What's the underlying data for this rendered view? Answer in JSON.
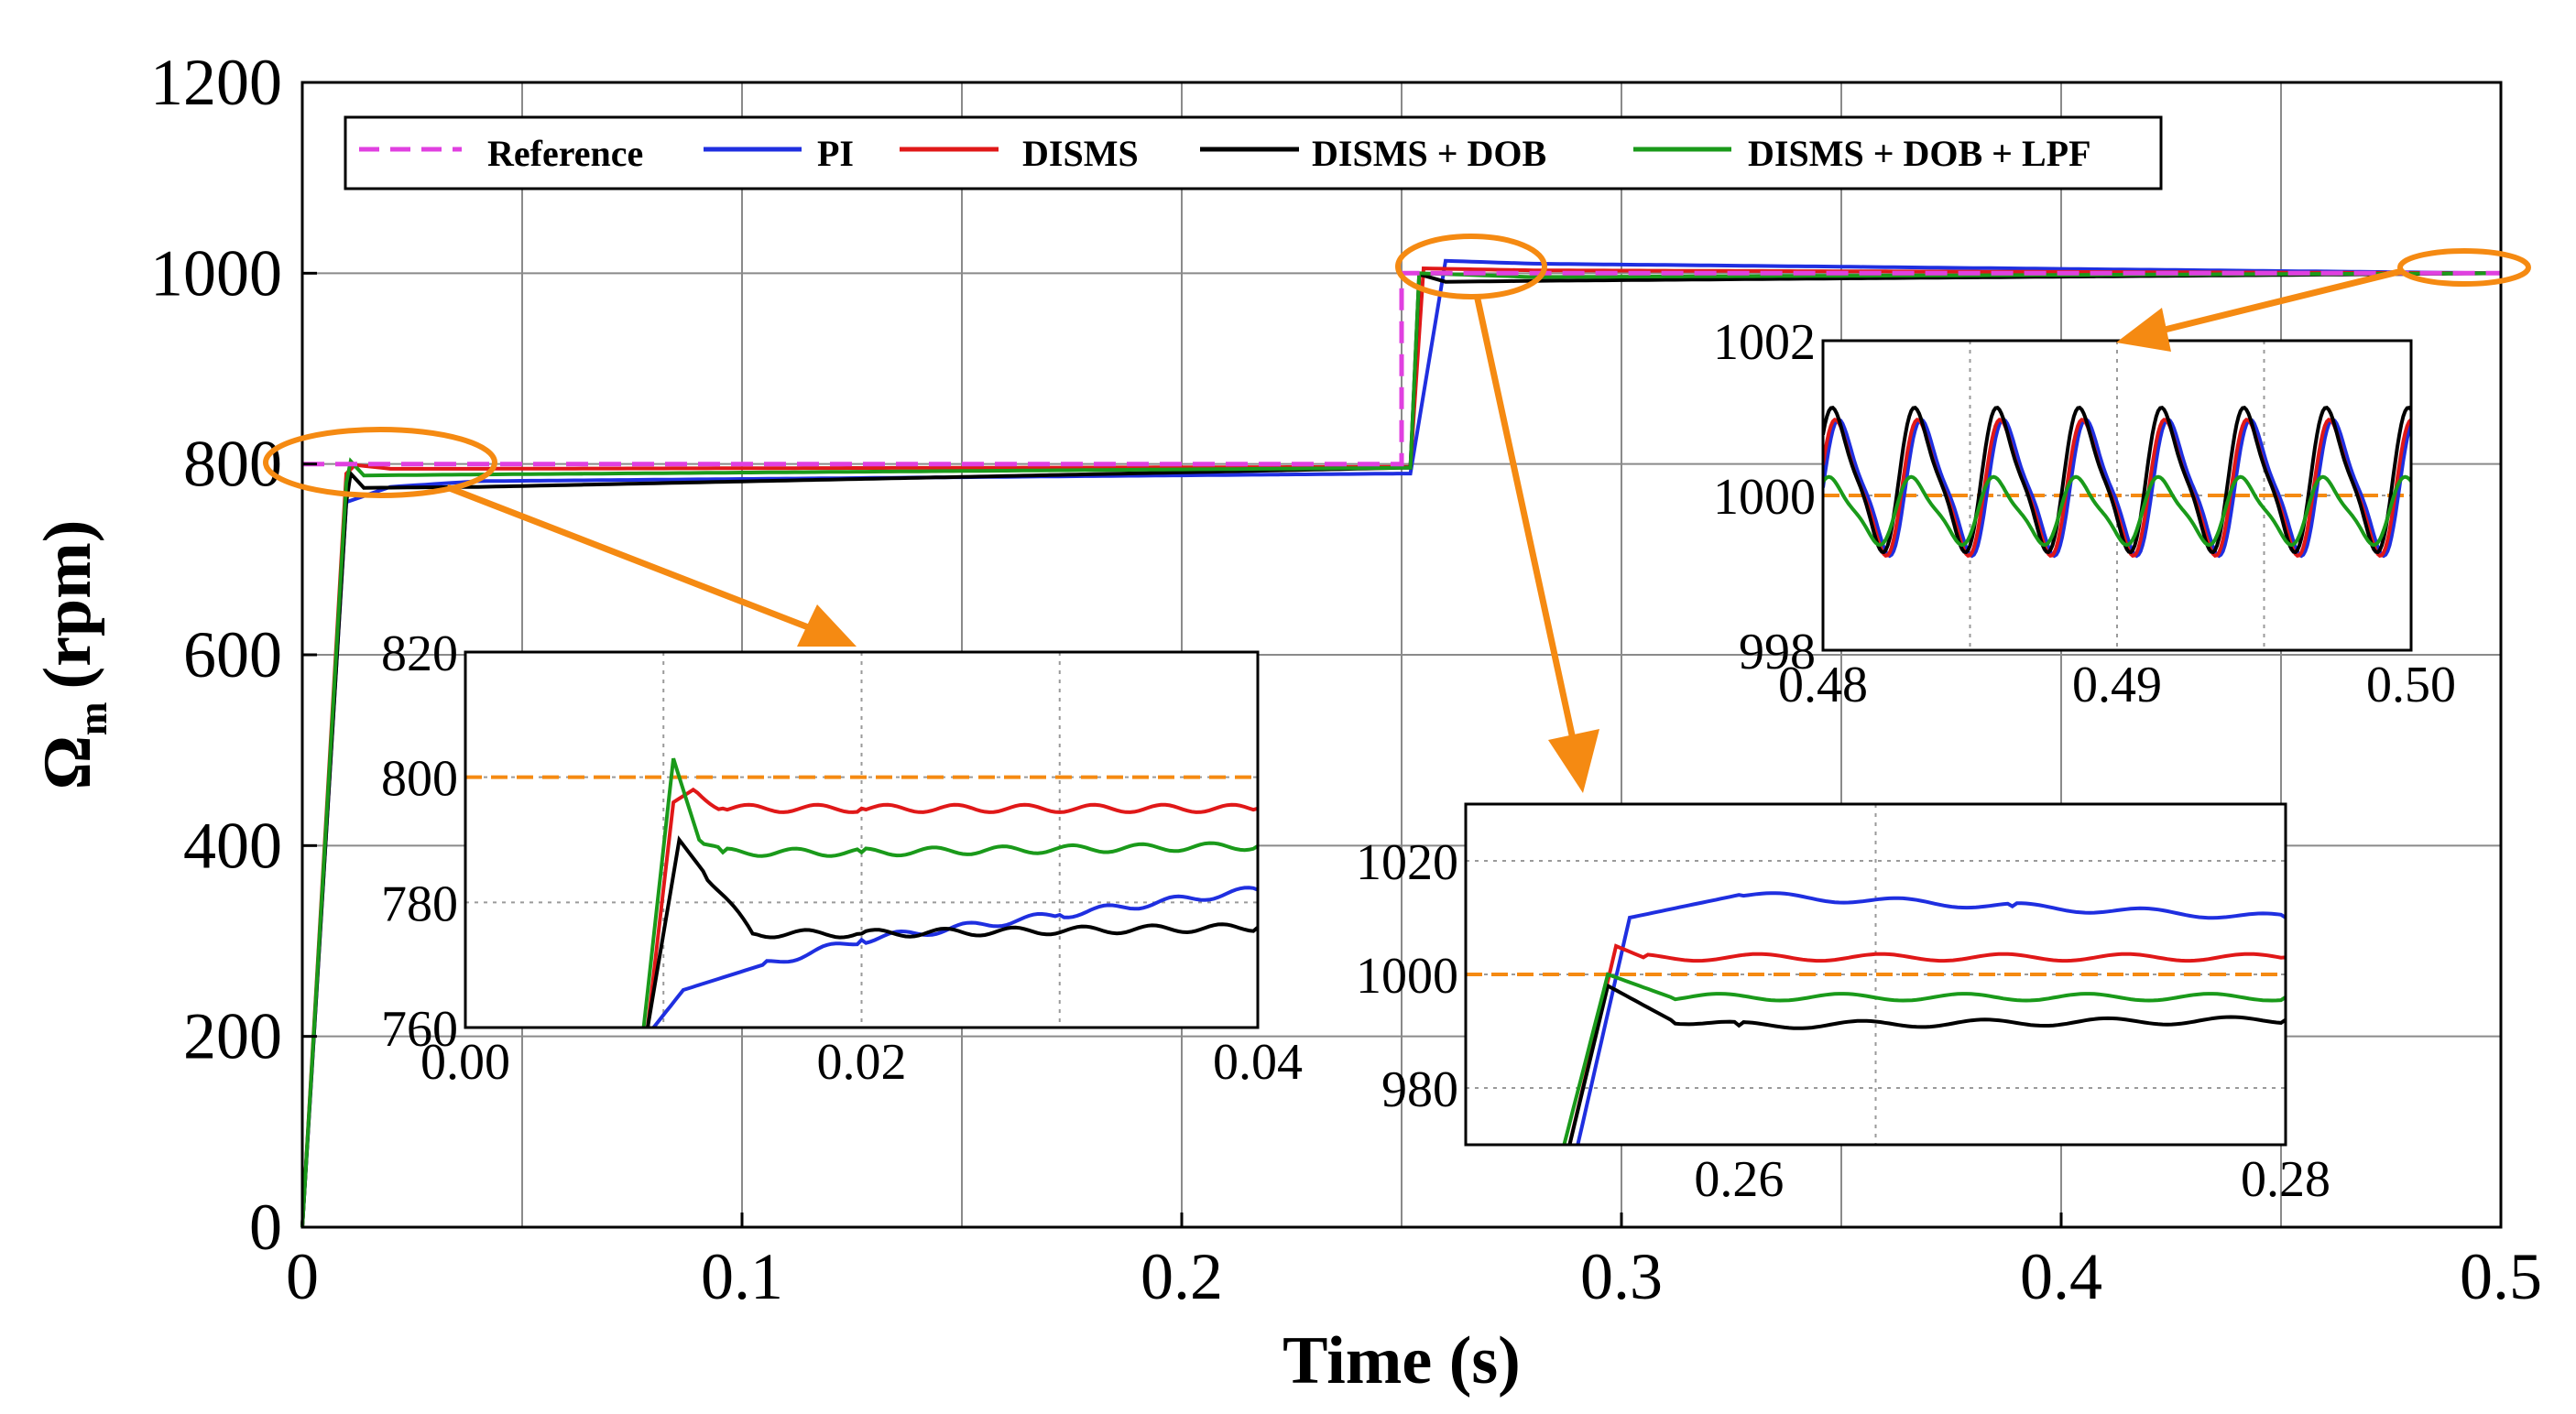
{
  "chart_data": {
    "type": "line",
    "ylabel_symbol": "Ω",
    "ylabel_sub": "m",
    "ylabel_unit": "(rpm)",
    "xlabel": "Time (s)",
    "xlim": [
      0,
      0.5
    ],
    "ylim": [
      0,
      1200
    ],
    "xticks": [
      "0",
      "0.1",
      "0.2",
      "0.3",
      "0.4",
      "0.5"
    ],
    "yticks": [
      "0",
      "200",
      "400",
      "600",
      "800",
      "1000",
      "1200"
    ],
    "legend": [
      "Reference",
      "PI",
      "DISMS",
      "DISMS + DOB",
      "DISMS + DOB + LPF"
    ],
    "colors": {
      "Reference": "#e040e0",
      "PI": "#1f2fe0",
      "DISMS": "#e01818",
      "DISMS + DOB": "#000000",
      "DISMS + DOB + LPF": "#1a9a1a",
      "highlight": "#f58a12"
    },
    "series": [
      {
        "name": "Reference",
        "x": [
          0,
          0.25,
          0.25,
          0.5
        ],
        "values": [
          800,
          800,
          1000,
          1000
        ]
      },
      {
        "name": "PI",
        "x": [
          0,
          0.01,
          0.02,
          0.04,
          0.25,
          0.252,
          0.26,
          0.28,
          0.5
        ],
        "values": [
          0,
          760,
          776,
          782,
          790,
          790,
          1013,
          1010,
          1000
        ]
      },
      {
        "name": "DISMS",
        "x": [
          0,
          0.01,
          0.012,
          0.02,
          0.04,
          0.25,
          0.252,
          0.255,
          0.28,
          0.5
        ],
        "values": [
          0,
          790,
          799,
          795,
          795,
          797,
          797,
          1005,
          1003,
          1000
        ]
      },
      {
        "name": "DISMS + DOB",
        "x": [
          0,
          0.01,
          0.011,
          0.014,
          0.04,
          0.25,
          0.252,
          0.254,
          0.26,
          0.28,
          0.5
        ],
        "values": [
          0,
          760,
          790,
          775,
          776,
          796,
          796,
          999,
          991,
          992,
          1000
        ]
      },
      {
        "name": "DISMS + DOB + LPF",
        "x": [
          0,
          0.01,
          0.011,
          0.014,
          0.04,
          0.25,
          0.252,
          0.254,
          0.28,
          0.5
        ],
        "values": [
          0,
          780,
          803,
          788,
          789,
          796,
          796,
          1000,
          996,
          1000
        ]
      }
    ],
    "insets": [
      {
        "name": "start-zoom",
        "xlim": [
          0,
          0.04
        ],
        "ylim": [
          760,
          820
        ],
        "xticks": [
          "0.00",
          "0.02",
          "0.04"
        ],
        "yticks": [
          "760",
          "780",
          "800",
          "820"
        ],
        "PI": [
          [
            0.0095,
            760
          ],
          [
            0.011,
            766
          ],
          [
            0.015,
            770
          ],
          [
            0.02,
            774
          ],
          [
            0.03,
            778
          ],
          [
            0.04,
            782
          ]
        ],
        "DISMS": [
          [
            0.0092,
            760
          ],
          [
            0.0105,
            796
          ],
          [
            0.0115,
            798
          ],
          [
            0.013,
            795
          ],
          [
            0.02,
            795
          ],
          [
            0.04,
            795
          ]
        ],
        "DISMS + DOB": [
          [
            0.0092,
            760
          ],
          [
            0.0108,
            790
          ],
          [
            0.012,
            785
          ],
          [
            0.0145,
            775
          ],
          [
            0.02,
            775
          ],
          [
            0.04,
            776
          ]
        ],
        "DISMS + DOB + LPF": [
          [
            0.009,
            760
          ],
          [
            0.0105,
            803
          ],
          [
            0.0118,
            790
          ],
          [
            0.013,
            788
          ],
          [
            0.02,
            788
          ],
          [
            0.04,
            789
          ]
        ],
        "Reference": [
          [
            0,
            800
          ],
          [
            0.04,
            800
          ]
        ]
      },
      {
        "name": "step-zoom",
        "xlim": [
          0.25,
          0.28
        ],
        "ylim": [
          970,
          1030
        ],
        "xticks": [
          "0.26",
          "0.28"
        ],
        "yticks": [
          "980",
          "1000",
          "1020"
        ],
        "PI": [
          [
            0.2541,
            970
          ],
          [
            0.256,
            1010
          ],
          [
            0.26,
            1014
          ],
          [
            0.27,
            1012
          ],
          [
            0.28,
            1010
          ]
        ],
        "DISMS": [
          [
            0.2538,
            970
          ],
          [
            0.2555,
            1005
          ],
          [
            0.2565,
            1003
          ],
          [
            0.28,
            1003
          ]
        ],
        "DISMS + DOB": [
          [
            0.2538,
            970
          ],
          [
            0.2552,
            998
          ],
          [
            0.2575,
            992
          ],
          [
            0.26,
            991
          ],
          [
            0.28,
            992
          ]
        ],
        "DISMS + DOB + LPF": [
          [
            0.2536,
            970
          ],
          [
            0.2552,
            1000
          ],
          [
            0.2575,
            996
          ],
          [
            0.28,
            996
          ]
        ],
        "Reference": [
          [
            0.25,
            1000
          ],
          [
            0.28,
            1000
          ]
        ]
      },
      {
        "name": "steady-zoom",
        "xlim": [
          0.48,
          0.5
        ],
        "ylim": [
          998,
          1002
        ],
        "xticks": [
          "0.48",
          "0.49",
          "0.50"
        ],
        "yticks": [
          "998",
          "1000",
          "1002"
        ],
        "PI": {
          "mean": 1000.1,
          "amplitude": 0.8,
          "period": 0.0028
        },
        "DISMS": {
          "mean": 1000.1,
          "amplitude": 0.8,
          "period": 0.0028
        },
        "DISMS + DOB": {
          "mean": 1000.2,
          "amplitude": 0.85,
          "period": 0.0028
        },
        "DISMS + DOB + LPF": {
          "mean": 999.8,
          "amplitude": 0.4,
          "period": 0.0028
        },
        "Reference": [
          [
            0.48,
            1000
          ],
          [
            0.5,
            1000
          ]
        ]
      }
    ]
  }
}
